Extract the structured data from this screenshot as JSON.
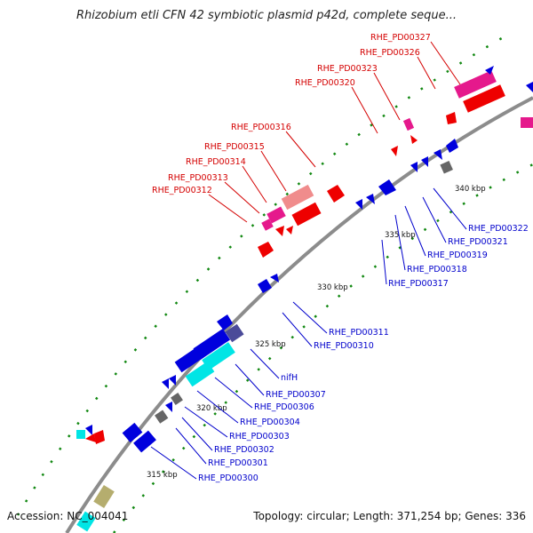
{
  "title": "Rhizobium etli CFN 42 symbiotic plasmid p42d, complete seque...",
  "footer": {
    "accession": "Accession: NC_004041",
    "topology": "Topology: circular; Length: 371,254 bp; Genes: 336"
  },
  "colors": {
    "label_forward": "#d40000",
    "label_reverse": "#0000cc",
    "backbone": "#8c8c8c",
    "gc_dots": "#118811"
  },
  "scale": {
    "unit": "kbp",
    "ticks": [
      "315 kbp",
      "320 kbp",
      "325 kbp",
      "330 kbp",
      "335 kbp",
      "340 kbp"
    ]
  },
  "labels_forward": [
    "RHE_PD00327",
    "RHE_PD00326",
    "RHE_PD00323",
    "RHE_PD00320",
    "RHE_PD00316",
    "RHE_PD00315",
    "RHE_PD00314",
    "RHE_PD00313",
    "RHE_PD00312"
  ],
  "labels_reverse": [
    "RHE_PD00322",
    "RHE_PD00321",
    "RHE_PD00319",
    "RHE_PD00318",
    "RHE_PD00317",
    "RHE_PD00311",
    "RHE_PD00310",
    "nifH",
    "RHE_PD00307",
    "RHE_PD00306",
    "RHE_PD00304",
    "RHE_PD00303",
    "RHE_PD00302",
    "RHE_PD00301",
    "RHE_PD00300"
  ]
}
